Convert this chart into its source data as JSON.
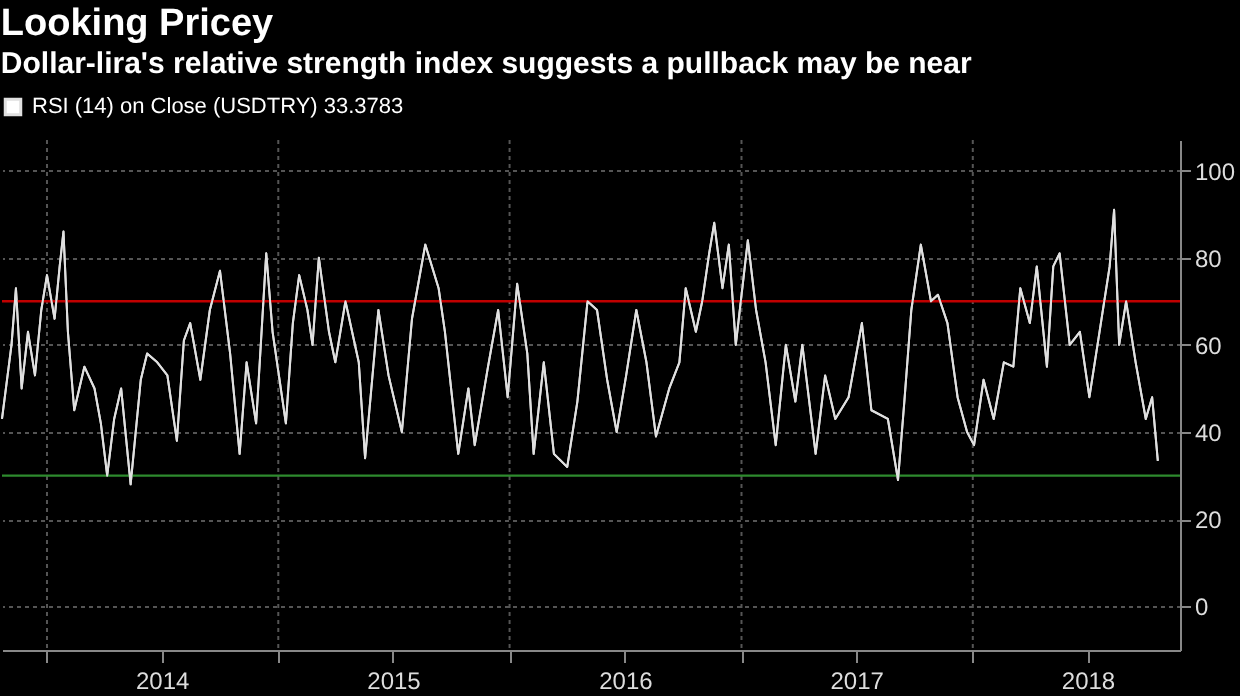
{
  "chart_data": {
    "type": "line",
    "title": "Looking Pricey",
    "subtitle": "Dollar-lira's relative strength index suggests a pullback may be near",
    "x": [
      "2013-10-22",
      "2013-11-06",
      "2013-11-13",
      "2013-11-22",
      "2013-12-02",
      "2013-12-13",
      "2013-12-23",
      "2014-01-01",
      "2014-01-13",
      "2014-01-21",
      "2014-01-27",
      "2014-02-03",
      "2014-02-13",
      "2014-03-01",
      "2014-03-17",
      "2014-03-27",
      "2014-04-06",
      "2014-04-17",
      "2014-04-28",
      "2014-05-13",
      "2014-05-29",
      "2014-06-08",
      "2014-06-24",
      "2014-07-10",
      "2014-07-25",
      "2014-08-05",
      "2014-08-15",
      "2014-08-31",
      "2014-09-15",
      "2014-10-01",
      "2014-10-17",
      "2014-11-01",
      "2014-11-12",
      "2014-11-27",
      "2014-12-13",
      "2014-12-23",
      "2015-01-13",
      "2015-01-24",
      "2015-02-03",
      "2015-02-16",
      "2015-02-24",
      "2015-03-06",
      "2015-03-22",
      "2015-04-01",
      "2015-04-17",
      "2015-05-08",
      "2015-05-18",
      "2015-06-08",
      "2015-06-24",
      "2015-07-15",
      "2015-07-31",
      "2015-08-21",
      "2015-09-11",
      "2015-09-21",
      "2015-10-12",
      "2015-10-28",
      "2015-11-07",
      "2015-11-28",
      "2015-12-14",
      "2015-12-29",
      "2016-01-13",
      "2016-01-29",
      "2016-02-08",
      "2016-02-24",
      "2016-03-11",
      "2016-04-01",
      "2016-04-17",
      "2016-05-03",
      "2016-05-18",
      "2016-06-03",
      "2016-06-18",
      "2016-07-03",
      "2016-07-19",
      "2016-08-04",
      "2016-08-19",
      "2016-09-09",
      "2016-09-25",
      "2016-10-05",
      "2016-10-21",
      "2016-10-31",
      "2016-11-11",
      "2016-11-19",
      "2016-12-02",
      "2016-12-12",
      "2016-12-23",
      "2017-01-11",
      "2017-01-24",
      "2017-02-08",
      "2017-02-24",
      "2017-03-12",
      "2017-03-27",
      "2017-04-07",
      "2017-04-28",
      "2017-05-13",
      "2017-05-29",
      "2017-06-19",
      "2017-07-10",
      "2017-07-25",
      "2017-08-20",
      "2017-09-05",
      "2017-09-15",
      "2017-09-26",
      "2017-10-11",
      "2017-10-27",
      "2017-11-07",
      "2017-11-22",
      "2017-12-08",
      "2017-12-23",
      "2018-01-03",
      "2018-01-18",
      "2018-02-03",
      "2018-02-19",
      "2018-03-06",
      "2018-03-17",
      "2018-04-01",
      "2018-04-12",
      "2018-04-28",
      "2018-05-08",
      "2018-05-18",
      "2018-06-03",
      "2018-06-19",
      "2018-07-04",
      "2018-07-20",
      "2018-08-05",
      "2018-08-12",
      "2018-08-20",
      "2018-08-31",
      "2018-09-15",
      "2018-10-01",
      "2018-10-11",
      "2018-10-20"
    ],
    "series": [
      {
        "name": "RSI (14)  on Close (USDTRY) 33.3783",
        "color": "#e0e0e0",
        "values": [
          43,
          60,
          73,
          50,
          63,
          53,
          68,
          76,
          66,
          78,
          86,
          63,
          45,
          55,
          50,
          42,
          30,
          43,
          50,
          28,
          52,
          58,
          56,
          53,
          38,
          61,
          65,
          52,
          68,
          77,
          58,
          35,
          56,
          42,
          81,
          63,
          42,
          65,
          76,
          68,
          60,
          80,
          63,
          56,
          70,
          56,
          34,
          68,
          53,
          40,
          66,
          83,
          73,
          63,
          35,
          50,
          37,
          55,
          68,
          48,
          74,
          58,
          35,
          56,
          35,
          32,
          47,
          70,
          68,
          52,
          40,
          53,
          68,
          56,
          39,
          50,
          56,
          73,
          63,
          70,
          81,
          88,
          73,
          83,
          60,
          84,
          68,
          56,
          37,
          60,
          47,
          60,
          35,
          53,
          43,
          48,
          65,
          45,
          43,
          29,
          47,
          68,
          83,
          70,
          71.5,
          65,
          48,
          40,
          37,
          52,
          43,
          56,
          55,
          73,
          65,
          78,
          55,
          78,
          81,
          60,
          63,
          48,
          63,
          78,
          91,
          60,
          70,
          56,
          43,
          48,
          33.3783
        ]
      }
    ],
    "xlim": [
      "2013-10-22",
      "2018-11-24"
    ],
    "xticks": [
      {
        "value": "2014-01-01",
        "label": null
      },
      {
        "value": "2014-07-01",
        "label": "2014"
      },
      {
        "value": "2015-01-01",
        "label": null
      },
      {
        "value": "2015-07-01",
        "label": "2015"
      },
      {
        "value": "2016-01-01",
        "label": null
      },
      {
        "value": "2016-07-01",
        "label": "2016"
      },
      {
        "value": "2017-01-01",
        "label": null
      },
      {
        "value": "2017-07-01",
        "label": "2017"
      },
      {
        "value": "2018-01-01",
        "label": null
      },
      {
        "value": "2018-07-01",
        "label": "2018"
      }
    ],
    "ylim": [
      -10,
      107
    ],
    "yticks": [
      0,
      20,
      40,
      60,
      80,
      100
    ],
    "ref_lines": [
      {
        "axis": "y",
        "value": 70,
        "color": "#c00000"
      },
      {
        "axis": "y",
        "value": 30,
        "color": "#2e8b2e"
      }
    ],
    "grid": true,
    "legend": "top left",
    "marker": "none",
    "line_style": "solid"
  }
}
